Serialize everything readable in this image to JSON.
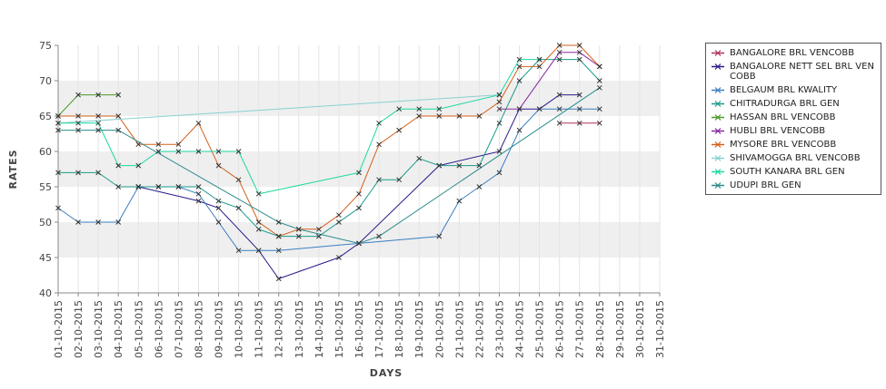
{
  "chart_data": {
    "type": "line",
    "title": "",
    "xlabel": "DAYS",
    "ylabel": "RATES",
    "ylim": [
      40,
      75
    ],
    "yticks": [
      40,
      45,
      50,
      55,
      60,
      65,
      70,
      75
    ],
    "grid": "alternating horizontal bands",
    "legend_position": "right",
    "categories": [
      "01-10-2015",
      "02-10-2015",
      "03-10-2015",
      "04-10-2015",
      "05-10-2015",
      "06-10-2015",
      "07-10-2015",
      "08-10-2015",
      "09-10-2015",
      "10-10-2015",
      "11-10-2015",
      "12-10-2015",
      "13-10-2015",
      "14-10-2015",
      "15-10-2015",
      "16-10-2015",
      "17-10-2015",
      "18-10-2015",
      "19-10-2015",
      "20-10-2015",
      "21-10-2015",
      "22-10-2015",
      "23-10-2015",
      "24-10-2015",
      "25-10-2015",
      "26-10-2015",
      "27-10-2015",
      "28-10-2015",
      "29-10-2015",
      "30-10-2015",
      "31-10-2015"
    ],
    "series": [
      {
        "name": "BANGALORE BRL VENCOBB",
        "color": "#b03060",
        "values": [
          null,
          null,
          null,
          null,
          null,
          null,
          null,
          null,
          null,
          null,
          null,
          null,
          null,
          null,
          null,
          null,
          null,
          null,
          null,
          null,
          null,
          null,
          null,
          null,
          null,
          64,
          64,
          64,
          null,
          null,
          null
        ]
      },
      {
        "name": "BANGALORE NETT SEL BRL VENCOBB",
        "color": "#2a1a8a",
        "values": [
          null,
          null,
          null,
          null,
          55,
          null,
          null,
          53,
          52,
          null,
          46,
          42,
          null,
          null,
          45,
          47,
          null,
          null,
          null,
          58,
          null,
          null,
          60,
          66,
          66,
          68,
          68,
          null,
          null,
          null,
          null
        ]
      },
      {
        "name": "BELGAUM BRL KWALITY",
        "color": "#3a7fc0",
        "values": [
          52,
          50,
          50,
          50,
          55,
          55,
          55,
          54,
          50,
          46,
          46,
          46,
          null,
          null,
          null,
          47,
          null,
          null,
          null,
          48,
          53,
          55,
          57,
          63,
          66,
          66,
          66,
          66,
          null,
          null,
          null
        ]
      },
      {
        "name": "CHITRADURGA BRL GEN",
        "color": "#1a9a8a",
        "values": [
          57,
          57,
          57,
          55,
          55,
          55,
          55,
          55,
          53,
          52,
          49,
          48,
          48,
          48,
          50,
          52,
          56,
          56,
          59,
          58,
          58,
          58,
          64,
          70,
          73,
          73,
          73,
          70,
          null,
          null,
          null
        ]
      },
      {
        "name": "HASSAN BRL VENCOBB",
        "color": "#4a9a2a",
        "values": [
          65,
          68,
          68,
          68,
          null,
          null,
          null,
          null,
          null,
          null,
          null,
          null,
          null,
          null,
          null,
          null,
          null,
          null,
          null,
          null,
          null,
          null,
          null,
          null,
          null,
          null,
          null,
          null,
          null,
          null,
          null
        ]
      },
      {
        "name": "HUBLI BRL VENCOBB",
        "color": "#8a2aa0",
        "values": [
          null,
          null,
          null,
          null,
          null,
          null,
          null,
          null,
          null,
          null,
          null,
          null,
          null,
          null,
          null,
          null,
          null,
          null,
          null,
          null,
          null,
          null,
          66,
          66,
          null,
          74,
          74,
          72,
          null,
          null,
          null
        ]
      },
      {
        "name": "MYSORE BRL VENCOBB",
        "color": "#d2601a",
        "values": [
          65,
          65,
          65,
          65,
          61,
          61,
          61,
          64,
          58,
          56,
          50,
          48,
          49,
          49,
          51,
          54,
          61,
          63,
          65,
          65,
          65,
          65,
          67,
          72,
          72,
          75,
          75,
          72,
          null,
          null,
          null
        ]
      },
      {
        "name": "SHIVAMOGGA BRL VENCOBB",
        "color": "#8ad0d0",
        "values": [
          64,
          null,
          null,
          null,
          null,
          null,
          null,
          null,
          null,
          null,
          null,
          null,
          null,
          null,
          null,
          null,
          null,
          null,
          null,
          null,
          null,
          null,
          68,
          null,
          null,
          null,
          null,
          null,
          null,
          null,
          null
        ]
      },
      {
        "name": "SOUTH KANARA BRL GEN",
        "color": "#1ad8a0",
        "values": [
          64,
          64,
          64,
          58,
          58,
          60,
          60,
          60,
          60,
          60,
          54,
          null,
          null,
          null,
          null,
          57,
          64,
          66,
          66,
          66,
          null,
          null,
          68,
          73,
          73,
          null,
          null,
          null,
          null,
          null,
          null
        ]
      },
      {
        "name": "UDUPI BRL GEN",
        "color": "#2a8a8a",
        "values": [
          63,
          63,
          63,
          63,
          null,
          null,
          null,
          null,
          null,
          null,
          null,
          50,
          49,
          null,
          null,
          47,
          48,
          null,
          null,
          null,
          null,
          null,
          null,
          null,
          null,
          null,
          null,
          69,
          null,
          null,
          null
        ]
      }
    ]
  }
}
